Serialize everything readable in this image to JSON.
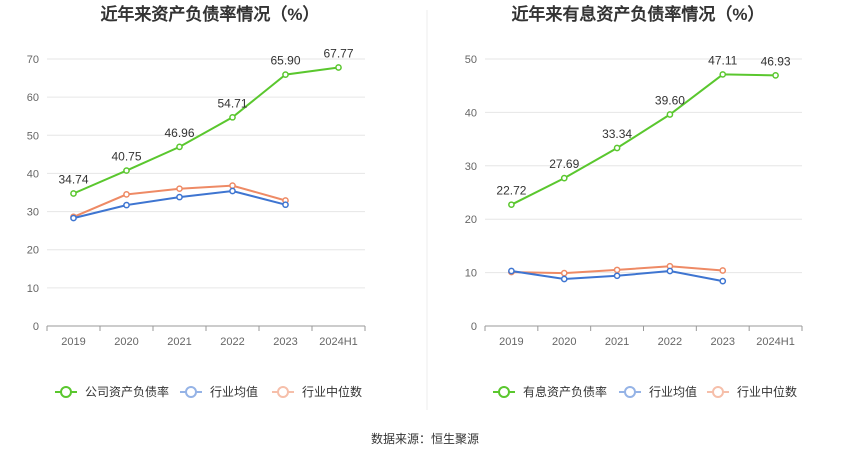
{
  "source_label": "数据来源：恒生聚源",
  "chart_data": [
    {
      "type": "line",
      "title": "近年来资产负债率情况（%）",
      "categories": [
        "2019",
        "2020",
        "2021",
        "2022",
        "2023",
        "2024H1"
      ],
      "ylim": [
        0,
        70
      ],
      "yticks": [
        0,
        10,
        20,
        30,
        40,
        50,
        60,
        70
      ],
      "grid": true,
      "legend_position": "bottom",
      "series": [
        {
          "name": "公司资产负债率",
          "color": "#5ac72e",
          "values": [
            34.74,
            40.75,
            46.96,
            54.71,
            65.9,
            67.77
          ],
          "labels": [
            "34.74",
            "40.75",
            "46.96",
            "54.71",
            "65.90",
            "67.77"
          ]
        },
        {
          "name": "行业均值",
          "color": "#3e75d1",
          "values": [
            28.3,
            31.7,
            33.8,
            35.4,
            31.8,
            null
          ]
        },
        {
          "name": "行业中位数",
          "color": "#ee8a65",
          "values": [
            28.6,
            34.5,
            36.0,
            36.8,
            32.9,
            null
          ]
        }
      ]
    },
    {
      "type": "line",
      "title": "近年来有息资产负债率情况（%）",
      "categories": [
        "2019",
        "2020",
        "2021",
        "2022",
        "2023",
        "2024H1"
      ],
      "ylim": [
        0,
        50
      ],
      "yticks": [
        0,
        10,
        20,
        30,
        40,
        50
      ],
      "grid": true,
      "legend_position": "bottom",
      "series": [
        {
          "name": "有息资产负债率",
          "color": "#5ac72e",
          "values": [
            22.72,
            27.69,
            33.34,
            39.6,
            47.11,
            46.93
          ],
          "labels": [
            "22.72",
            "27.69",
            "33.34",
            "39.60",
            "47.11",
            "46.93"
          ]
        },
        {
          "name": "行业均值",
          "color": "#3e75d1",
          "values": [
            10.3,
            8.8,
            9.4,
            10.3,
            8.4,
            null
          ]
        },
        {
          "name": "行业中位数",
          "color": "#ee8a65",
          "values": [
            10.1,
            9.9,
            10.5,
            11.2,
            10.4,
            null
          ]
        }
      ]
    }
  ]
}
